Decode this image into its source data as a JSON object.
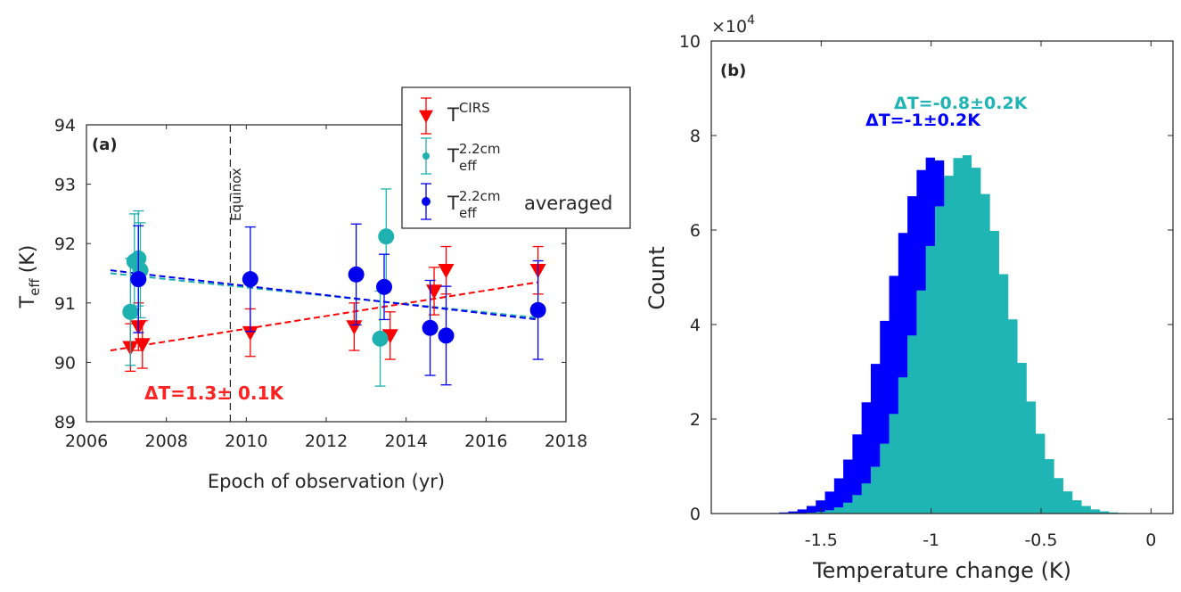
{
  "chart_data": [
    {
      "type": "scatter",
      "panel_label": "(a)",
      "xlabel": "Epoch of observation (yr)",
      "ylabel_main": "T",
      "ylabel_sub": "eff",
      "ylabel_unit": "(K)",
      "xlim": [
        2006,
        2018
      ],
      "ylim": [
        89,
        94
      ],
      "xticks": [
        "2006",
        "2008",
        "2010",
        "2012",
        "2014",
        "2016",
        "2018"
      ],
      "yticks": [
        "89",
        "90",
        "91",
        "92",
        "93",
        "94"
      ],
      "grid": false,
      "equinox": {
        "x": 2009.6,
        "label": "Equinox"
      },
      "legend": {
        "placement": "top-right",
        "entries": [
          {
            "main": "T",
            "sup": "CIRS",
            "sub": "",
            "suffix": ""
          },
          {
            "main": "T",
            "sup": "2.2cm",
            "sub": "eff",
            "suffix": ""
          },
          {
            "main": "T",
            "sup": "2.2cm",
            "sub": "eff",
            "suffix": "averaged"
          }
        ]
      },
      "annotation": "ΔT=1.3± 0.1K",
      "series": [
        {
          "name": "T^CIRS",
          "color": "#ff0000",
          "marker": "triangle-down",
          "points": [
            {
              "x": 2007.1,
              "y": 90.25,
              "err": 0.4
            },
            {
              "x": 2007.3,
              "y": 90.6,
              "err": 0.4
            },
            {
              "x": 2007.4,
              "y": 90.3,
              "err": 0.4
            },
            {
              "x": 2010.1,
              "y": 90.5,
              "err": 0.4
            },
            {
              "x": 2012.7,
              "y": 90.6,
              "err": 0.4
            },
            {
              "x": 2013.6,
              "y": 90.45,
              "err": 0.4
            },
            {
              "x": 2014.7,
              "y": 91.2,
              "err": 0.4
            },
            {
              "x": 2015.0,
              "y": 91.55,
              "err": 0.4
            },
            {
              "x": 2017.3,
              "y": 91.55,
              "err": 0.4
            }
          ],
          "trend": {
            "x": [
              2006.6,
              2017.3
            ],
            "y": [
              90.2,
              91.35
            ]
          }
        },
        {
          "name": "T_eff^2.2cm",
          "color": "#1fb0b0",
          "marker": "circle",
          "points": [
            {
              "x": 2007.1,
              "y": 90.85,
              "err": 0.9
            },
            {
              "x": 2007.2,
              "y": 91.7,
              "err": 0.8
            },
            {
              "x": 2007.3,
              "y": 91.75,
              "err": 0.8
            },
            {
              "x": 2007.35,
              "y": 91.55,
              "err": 0.8
            },
            {
              "x": 2013.35,
              "y": 90.4,
              "err": 0.8
            },
            {
              "x": 2013.5,
              "y": 92.12,
              "err": 0.8
            }
          ],
          "trend": {
            "x": [
              2006.6,
              2017.3
            ],
            "y": [
              91.5,
              90.75
            ]
          }
        },
        {
          "name": "T_eff^2.2cm averaged",
          "color": "#0000ee",
          "marker": "circle",
          "points": [
            {
              "x": 2007.3,
              "y": 91.4,
              "err": 0.9
            },
            {
              "x": 2010.1,
              "y": 91.4,
              "err": 0.88
            },
            {
              "x": 2012.75,
              "y": 91.48,
              "err": 0.85
            },
            {
              "x": 2013.45,
              "y": 91.27,
              "err": 0.55
            },
            {
              "x": 2014.6,
              "y": 90.58,
              "err": 0.8
            },
            {
              "x": 2015.0,
              "y": 90.45,
              "err": 0.83
            },
            {
              "x": 2017.3,
              "y": 90.88,
              "err": 0.83
            }
          ],
          "trend": {
            "x": [
              2006.6,
              2017.3
            ],
            "y": [
              91.55,
              90.72
            ]
          }
        }
      ]
    },
    {
      "type": "histogram",
      "panel_label": "(b)",
      "xlabel": "Temperature change (K)",
      "ylabel": "Count",
      "scale_label_base": "×10",
      "scale_label_exp": "4",
      "xlim": [
        -2,
        0.1
      ],
      "ylim": [
        0,
        10
      ],
      "xticks": [
        {
          "v": -1.5,
          "label": "-1.5"
        },
        {
          "v": -1,
          "label": "-1"
        },
        {
          "v": -0.5,
          "label": "-0.5"
        },
        {
          "v": 0,
          "label": "0"
        }
      ],
      "yticks": [
        {
          "v": 0,
          "label": "0"
        },
        {
          "v": 2,
          "label": "2"
        },
        {
          "v": 4,
          "label": "4"
        },
        {
          "v": 6,
          "label": "6"
        },
        {
          "v": 8,
          "label": "8"
        },
        {
          "v": 10,
          "label": "10"
        }
      ],
      "grid": false,
      "bin_width": 0.0417,
      "series": [
        {
          "name": "ΔT=-1±0.2K",
          "color": "#0000ff",
          "mean": -0.99,
          "sd": 0.2,
          "peak": 7.55
        },
        {
          "name": "ΔT=-0.8±0.2K",
          "color": "#1fb5b5",
          "mean": -0.85,
          "sd": 0.2,
          "peak": 7.6
        }
      ]
    }
  ]
}
